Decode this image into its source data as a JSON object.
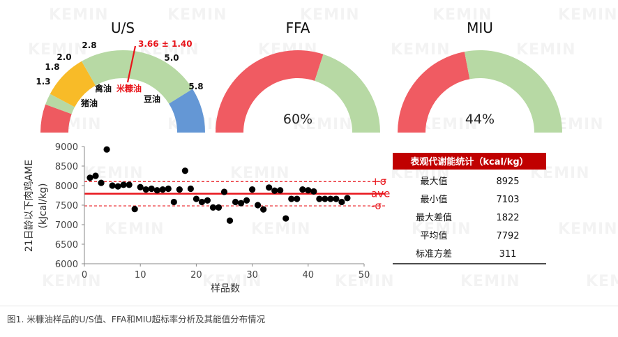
{
  "watermark": "KEMIN",
  "gauges": [
    {
      "title": "U/S",
      "segments": [
        {
          "from": 1.3,
          "to": 1.8,
          "color": "#ee5a60",
          "name": "猪油"
        },
        {
          "from": 1.8,
          "to": 2.0,
          "color": "#b7d9a4",
          "name": ""
        },
        {
          "from": 2.0,
          "to": 2.8,
          "color": "#f8bb28",
          "name": "禽油"
        },
        {
          "from": 2.8,
          "to": 5.0,
          "color": "#b7d9a4",
          "name": "米糠油"
        },
        {
          "from": 5.0,
          "to": 5.8,
          "color": "#6497d5",
          "name": "豆油"
        }
      ],
      "ticks": [
        "1.3",
        "1.8",
        "2.0",
        "2.8",
        "5.0",
        "5.8"
      ],
      "range": [
        1.3,
        5.8
      ],
      "labels": {
        "lard": "猪油",
        "poultry": "禽油",
        "rice": "米糠油",
        "soy": "豆油"
      },
      "marker": {
        "value": 3.66,
        "text": "3.66 ± 1.40",
        "color": "#e8151b"
      }
    },
    {
      "title": "FFA",
      "percent": 60,
      "percent_text": "60%",
      "bad_color": "#f05b62",
      "good_color": "#b7d9a4"
    },
    {
      "title": "MIU",
      "percent": 44,
      "percent_text": "44%",
      "bad_color": "#f05b62",
      "good_color": "#b7d9a4"
    }
  ],
  "chart_data": {
    "type": "scatter",
    "xlabel": "样品数",
    "ylabel": "21日龄以下肉鸡AME",
    "ylabel_unit": "(kJcal/kg)",
    "xlim": [
      0,
      50
    ],
    "ylim": [
      6000,
      9000
    ],
    "xticks": [
      "0",
      "10",
      "20",
      "30",
      "40",
      "50"
    ],
    "yticks": [
      "6000",
      "6500",
      "7000",
      "7500",
      "8000",
      "8500",
      "9000"
    ],
    "grid": false,
    "x": [
      1,
      2,
      3,
      4,
      5,
      6,
      7,
      8,
      9,
      10,
      11,
      12,
      13,
      14,
      15,
      16,
      17,
      18,
      19,
      20,
      21,
      22,
      23,
      24,
      25,
      26,
      27,
      28,
      29,
      30,
      31,
      32,
      33,
      34,
      35,
      36,
      37,
      38,
      39,
      40,
      41,
      42,
      43,
      44,
      45,
      46,
      47
    ],
    "y": [
      8200,
      8250,
      8070,
      8925,
      8000,
      7980,
      8020,
      8020,
      7400,
      7960,
      7900,
      7920,
      7880,
      7900,
      7920,
      7580,
      7900,
      8380,
      7920,
      7660,
      7580,
      7620,
      7440,
      7440,
      7840,
      7103,
      7580,
      7550,
      7620,
      7900,
      7500,
      7390,
      7950,
      7870,
      7880,
      7160,
      7660,
      7660,
      7900,
      7880,
      7850,
      7660,
      7660,
      7660,
      7660,
      7580,
      7680
    ],
    "reference_lines": [
      {
        "name": "+σ",
        "value": 8103,
        "style": "dashed"
      },
      {
        "name": "ave",
        "value": 7792,
        "style": "solid"
      },
      {
        "name": "-σ",
        "value": 7481,
        "style": "dashed"
      }
    ],
    "ref_color": "#e8151b",
    "point_color": "#000000"
  },
  "stats": {
    "title": "表观代谢能统计（kcal/kg）",
    "header_color": "#c00000",
    "rows": [
      {
        "label": "最大值",
        "value": "8925"
      },
      {
        "label": "最小值",
        "value": "7103"
      },
      {
        "label": "最大差值",
        "value": "1822"
      },
      {
        "label": "平均值",
        "value": "7792"
      },
      {
        "label": "标准方差",
        "value": "311"
      }
    ]
  },
  "caption": "图1. 米糠油样品的U/S值、FFA和MIU超标率分析及其能值分布情况"
}
